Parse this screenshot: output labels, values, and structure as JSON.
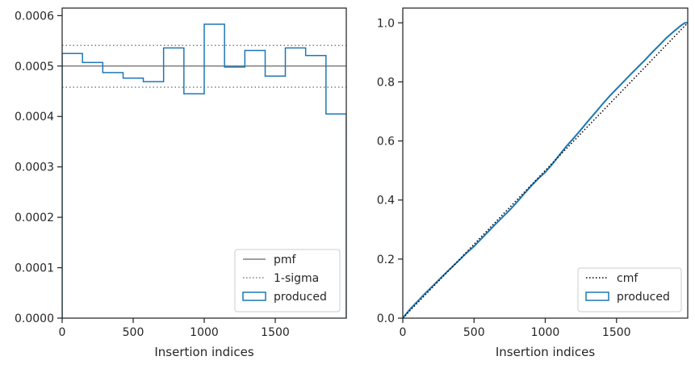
{
  "chart_data": [
    {
      "type": "step",
      "xlabel": "Insertion indices",
      "ylabel": "",
      "xlim": [
        0,
        2000
      ],
      "ylim": [
        0,
        0.000615
      ],
      "xticks": [
        0,
        500,
        1000,
        1500
      ],
      "xtick_labels": [
        "0",
        "500",
        "1000",
        "1500"
      ],
      "yticks": [
        0,
        0.0001,
        0.0002,
        0.0003,
        0.0004,
        0.0005,
        0.0006
      ],
      "ytick_labels": [
        "0.0000",
        "0.0001",
        "0.0002",
        "0.0003",
        "0.0004",
        "0.0005",
        "0.0006"
      ],
      "legend_position": "lower-right",
      "series": [
        {
          "name": "pmf",
          "style": "solid",
          "color": "#808080",
          "y": 0.0005
        },
        {
          "name": "1-sigma",
          "style": "dotted",
          "color": "#808080",
          "y": [
            0.000458,
            0.000541
          ]
        },
        {
          "name": "produced",
          "style": "step",
          "color": "#1f77b4",
          "bin_edges": [
            0,
            143,
            286,
            429,
            571,
            714,
            857,
            1000,
            1143,
            1286,
            1429,
            1571,
            1714,
            1857,
            2000
          ],
          "values": [
            0.000525,
            0.000507,
            0.000487,
            0.000476,
            0.000469,
            0.000536,
            0.000445,
            0.000583,
            0.000498,
            0.000531,
            0.00048,
            0.000536,
            0.000521,
            0.000405
          ]
        }
      ]
    },
    {
      "type": "line",
      "xlabel": "Insertion indices",
      "ylabel": "",
      "xlim": [
        0,
        2000
      ],
      "ylim": [
        0,
        1.05
      ],
      "xticks": [
        0,
        500,
        1000,
        1500
      ],
      "xtick_labels": [
        "0",
        "500",
        "1000",
        "1500"
      ],
      "yticks": [
        0,
        0.2,
        0.4,
        0.6,
        0.8,
        1.0
      ],
      "ytick_labels": [
        "0.0",
        "0.2",
        "0.4",
        "0.6",
        "0.8",
        "1.0"
      ],
      "legend_position": "lower-right",
      "series": [
        {
          "name": "cmf",
          "style": "dotted",
          "color": "#000000",
          "x": [
            0,
            2000
          ],
          "y": [
            0,
            1
          ]
        },
        {
          "name": "produced",
          "style": "line",
          "color": "#1f77b4",
          "x": [
            0,
            50,
            100,
            150,
            200,
            250,
            300,
            350,
            400,
            450,
            500,
            550,
            600,
            650,
            700,
            750,
            800,
            850,
            900,
            950,
            1000,
            1050,
            1100,
            1150,
            1200,
            1250,
            1300,
            1350,
            1400,
            1450,
            1500,
            1550,
            1600,
            1650,
            1700,
            1750,
            1800,
            1850,
            1900,
            1950,
            1980,
            2000
          ],
          "y": [
            0,
            0.03,
            0.055,
            0.08,
            0.104,
            0.128,
            0.152,
            0.175,
            0.198,
            0.222,
            0.243,
            0.268,
            0.293,
            0.318,
            0.342,
            0.366,
            0.392,
            0.42,
            0.447,
            0.472,
            0.494,
            0.522,
            0.553,
            0.583,
            0.61,
            0.638,
            0.667,
            0.695,
            0.724,
            0.751,
            0.776,
            0.801,
            0.826,
            0.85,
            0.874,
            0.9,
            0.924,
            0.949,
            0.97,
            0.99,
            1.0,
            1.0
          ]
        }
      ]
    }
  ]
}
